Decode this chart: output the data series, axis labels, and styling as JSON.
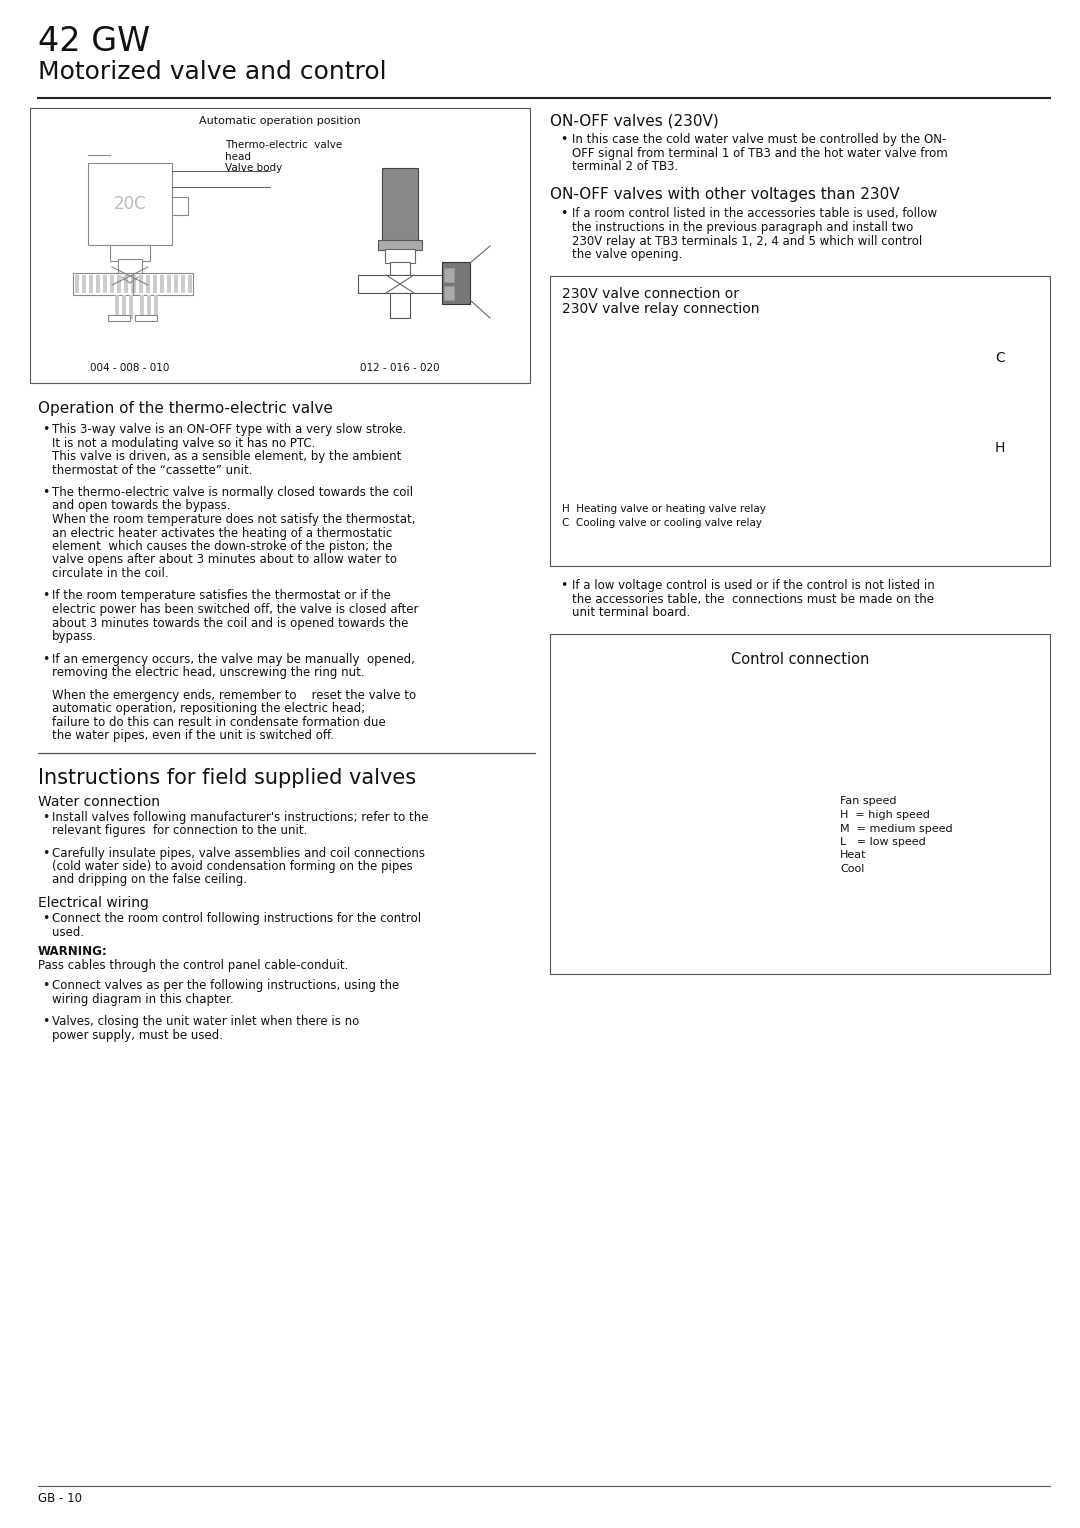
{
  "title_large": "42 GW",
  "title_sub": "Motorized valve and control",
  "bg_color": "#ffffff",
  "text_color": "#1a1a1a",
  "border_color": "#555555",
  "footer": "GB - 10",
  "sections": {
    "diagram_box": {
      "title": "Automatic operation position",
      "label1": "Thermo-electric  valve\nhead\nValve body",
      "label2": "004 - 008 - 010",
      "label3": "012 - 016 - 020",
      "text_20c": "20C"
    },
    "thermo_section": {
      "heading": "Operation of the thermo-electric valve",
      "bullets": [
        "This 3-way valve is an ON-OFF type with a very slow stroke.\nIt is not a modulating valve so it has no PTC.\nThis valve is driven, as a sensible element, by the ambient\nthermostat of the “cassette” unit.",
        "The thermo-electric valve is normally closed towards the coil\nand open towards the bypass.\nWhen the room temperature does not satisfy the thermostat,\nan electric heater activates the heating of a thermostatic\nelement  which causes the down-stroke of the piston; the\nvalve opens after about 3 minutes about to allow water to\ncirculate in the coil.",
        "If the room temperature satisfies the thermostat or if the\nelectric power has been switched off, the valve is closed after\nabout 3 minutes towards the coil and is opened towards the\nbypass.",
        "If an emergency occurs, the valve may be manually  opened,\nremoving the electric head, unscrewing the ring nut."
      ],
      "extra_text": "When the emergency ends, remember to    reset the valve to\nautomatic operation, repositioning the electric head;\nfailure to do this can result in condensate formation due\nthe water pipes, even if the unit is switched off."
    },
    "instructions_section": {
      "heading": "Instructions for field supplied valves",
      "water_heading": "Water connection",
      "water_bullets": [
        "Install valves following manufacturer's instructions; refer to the\nrelevant figures  for connection to the unit.",
        "Carefully insulate pipes, valve assemblies and coil connections\n(cold water side) to avoid condensation forming on the pipes\nand dripping on the false ceiling."
      ],
      "electrical_heading": "Electrical wiring",
      "electrical_bullets": [
        "Connect the room control following instructions for the control\nused."
      ],
      "warning_label": "WARNING:",
      "warning_text": "Pass cables through the control panel cable-conduit.",
      "electrical_bullets2": [
        "Connect valves as per the following instructions, using the\nwiring diagram in this chapter.",
        "Valves, closing the unit water inlet when there is no\npower supply, must be used."
      ]
    },
    "right_sections": {
      "onoff_230_heading": "ON-OFF valves (230V)",
      "onoff_230_bullet": "In this case the cold water valve must be controlled by the ON-\nOFF signal from terminal 1 of TB3 and the hot water valve from\nterminal 2 of TB3.",
      "onoff_other_heading": "ON-OFF valves with other voltages than 230V",
      "onoff_other_bullet": "If a room control listed in the accessories table is used, follow\nthe instructions in the previous paragraph and install two\n230V relay at TB3 terminals 1, 2, 4 and 5 which will control\nthe valve opening.",
      "valve_box_line1": "230V valve connection or",
      "valve_box_line2": "230V valve relay connection",
      "valve_box_C": "C",
      "valve_box_H": "H",
      "valve_legend_line1": "H  Heating valve or heating valve relay",
      "valve_legend_line2": "C  Cooling valve or cooling valve relay",
      "lowvoltage_bullet": "If a low voltage control is used or if the control is not listed in\nthe accessories table, the  connections must be made on the\nunit terminal board.",
      "control_box_heading": "Control connection",
      "control_box_legend": "Fan speed\nH  = high speed\nM  = medium speed\nL   = low speed\nHeat\nCool"
    }
  }
}
